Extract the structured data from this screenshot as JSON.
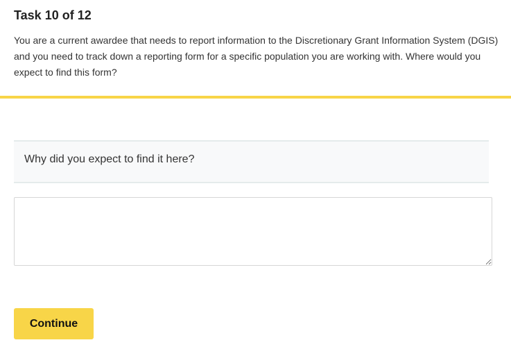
{
  "task": {
    "title": "Task 10 of 12",
    "description": "You are a current awardee that needs to report information to the Discretionary Grant Information System (DGIS) and you need to track down a reporting form for a specific population you are working with. Where would you expect to find this form?"
  },
  "question": {
    "label": "Why did you expect to find it here?",
    "answer_value": "",
    "answer_placeholder": ""
  },
  "actions": {
    "continue_label": "Continue"
  },
  "colors": {
    "accent": "#f8d548"
  }
}
